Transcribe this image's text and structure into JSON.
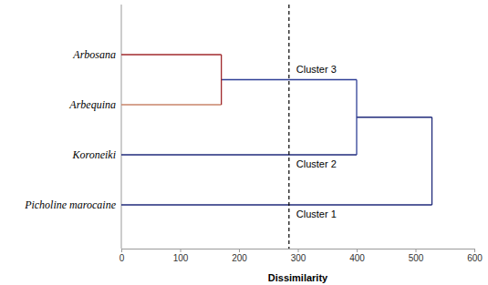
{
  "chart_data": {
    "type": "dendrogram",
    "x_label": "Dissimilarity",
    "leaves": [
      {
        "name": "Arbosana",
        "color": "#a0282c"
      },
      {
        "name": "Arbequina",
        "color": "#c9846a"
      },
      {
        "name": "Koroneiki",
        "color": "#1f2a7a"
      },
      {
        "name": "Picholine marocaine",
        "color": "#1f2a7a"
      }
    ],
    "merges": [
      {
        "children": [
          0,
          1
        ],
        "height": 170,
        "color": "#a0282c"
      },
      {
        "children": [
          4,
          2
        ],
        "height": 400,
        "color": "#2f3f96"
      },
      {
        "children": [
          5,
          3
        ],
        "height": 528,
        "color": "#1f2a7a"
      }
    ],
    "cut": 285,
    "clusters": [
      {
        "label": "Cluster 3",
        "node": 4
      },
      {
        "label": "Cluster 2",
        "node": 2
      },
      {
        "label": "Cluster 1",
        "node": 3
      }
    ],
    "xlim": [
      0,
      600
    ],
    "xticks": [
      0,
      100,
      200,
      300,
      400,
      500,
      600
    ],
    "grid": false
  }
}
